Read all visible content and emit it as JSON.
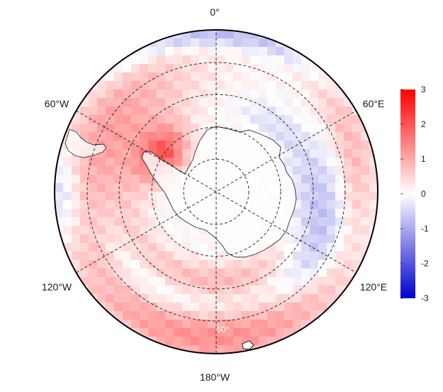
{
  "map": {
    "projection": "south-polar-stereographic",
    "longitude_labels": {
      "top": "0°",
      "upper_left": "60°W",
      "upper_right": "60°E",
      "lower_left": "120°W",
      "lower_right": "120°E",
      "bottom": "180°W"
    },
    "latitude_label": "50°",
    "gridlines": "dashed",
    "anomaly_pattern": {
      "description_free": true,
      "bands": [
        {
          "ring": "outer",
          "sector_deg": [
            -60,
            60
          ],
          "sign": "mixed"
        },
        {
          "ring": "outer",
          "sector_deg": [
            120,
            240
          ],
          "sign": "positive"
        }
      ]
    }
  },
  "colorbar": {
    "min": -3,
    "max": 3,
    "ticks": [
      "3",
      "2",
      "1",
      "0",
      "-1",
      "-2",
      "-3"
    ],
    "colors": {
      "low": "#0000cc",
      "mid": "#ffffff",
      "high": "#ff0000"
    }
  }
}
